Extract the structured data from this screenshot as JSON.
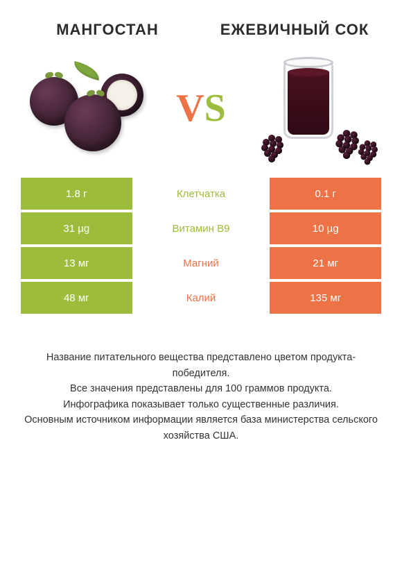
{
  "header": {
    "left_title": "МАНГОСТАН",
    "right_title": "ЕЖЕВИЧНЫЙ СОК"
  },
  "vs": {
    "v": "V",
    "s": "S"
  },
  "colors": {
    "green": "#9cbd3b",
    "orange": "#ed7245",
    "text": "#333333",
    "bg": "#ffffff"
  },
  "table": {
    "rows": [
      {
        "left": "1.8 г",
        "label": "Клетчатка",
        "right": "0.1 г",
        "winner": "green"
      },
      {
        "left": "31 µg",
        "label": "Витамин B9",
        "right": "10 µg",
        "winner": "green"
      },
      {
        "left": "13 мг",
        "label": "Магний",
        "right": "21 мг",
        "winner": "orange"
      },
      {
        "left": "48 мг",
        "label": "Калий",
        "right": "135 мг",
        "winner": "orange"
      }
    ]
  },
  "footer": {
    "line1": "Название питательного вещества представлено цветом продукта-победителя.",
    "line2": "Все значения представлены для 100 граммов продукта.",
    "line3": "Инфографика показывает только существенные различия.",
    "line4": "Основным источником информации является база министерства сельского хозяйства США."
  },
  "images": {
    "left": {
      "name": "mangosteen-illustration"
    },
    "right": {
      "name": "blackberry-juice-illustration"
    }
  }
}
